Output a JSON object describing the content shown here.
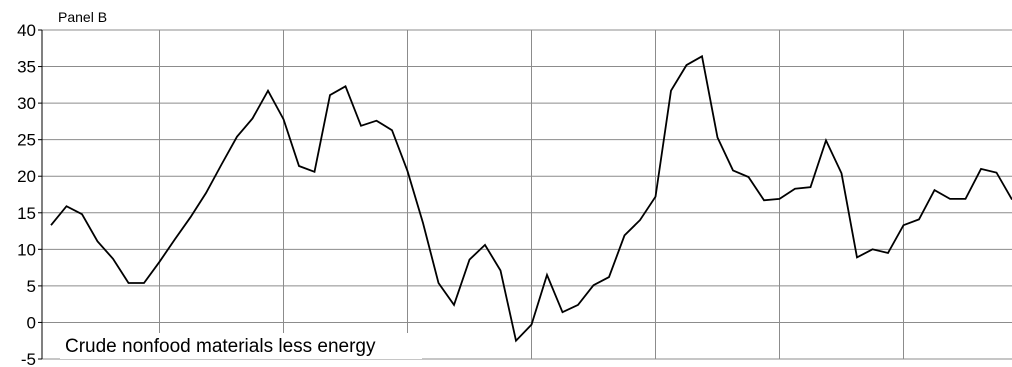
{
  "chart_data": {
    "type": "line",
    "title": "Panel B",
    "annotation": "Crude nonfood materials less energy",
    "xlabel": "",
    "ylabel": "",
    "ylim": [
      -5,
      40
    ],
    "yticks": [
      -5,
      0,
      5,
      10,
      15,
      20,
      25,
      30,
      35,
      40
    ],
    "grid": true,
    "series": [
      {
        "name": "",
        "color": "#000000",
        "values": [
          13.3,
          15.9,
          14.8,
          11.1,
          8.7,
          5.4,
          5.4,
          8.3,
          11.4,
          14.4,
          17.7,
          21.6,
          25.4,
          27.9,
          31.7,
          27.8,
          21.4,
          20.6,
          31.1,
          32.3,
          26.9,
          27.6,
          26.3,
          20.7,
          13.6,
          5.4,
          2.4,
          8.6,
          10.6,
          7.1,
          -2.5,
          -0.3,
          6.5,
          1.4,
          2.4,
          5.1,
          6.2,
          11.9,
          14.0,
          17.2,
          31.7,
          35.2,
          36.4,
          25.3,
          20.8,
          19.9,
          16.7,
          16.9,
          18.3,
          18.5,
          24.9,
          20.4,
          8.9,
          10.0,
          9.5,
          13.3,
          14.1,
          18.1,
          16.9,
          16.9,
          21.0,
          20.5,
          16.8
        ]
      }
    ]
  }
}
